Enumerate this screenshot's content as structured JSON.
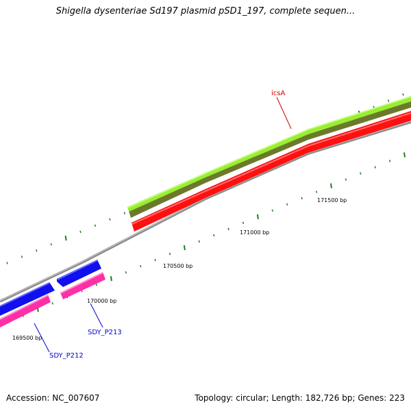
{
  "title": "Shigella dysenteriae Sd197 plasmid pSD1_197, complete sequen...",
  "footer": {
    "accession": "Accession: NC_007607",
    "summary": "Topology: circular; Length: 182,726 bp; Genes: 223"
  },
  "colors": {
    "backbone": "#8c8c8c",
    "tick": "#1e7d1e",
    "gene_icsA_top": "#99ee33",
    "gene_icsA_bottom": "#6b7a2a",
    "gene_icsA_reverse": "#ff1010",
    "gene_blue": "#1010ee",
    "gene_pink": "#ff2fa8",
    "label_red": "#cc0000",
    "label_blue": "#0000cc"
  },
  "bp_labels": [
    "169500 bp",
    "170000 bp",
    "170500 bp",
    "171000 bp",
    "171500 bp"
  ],
  "genes": [
    {
      "name": "icsA",
      "color": "#cc0000"
    },
    {
      "name": "SDY_P213",
      "color": "#0000cc"
    },
    {
      "name": "SDY_P212",
      "color": "#0000cc"
    }
  ]
}
